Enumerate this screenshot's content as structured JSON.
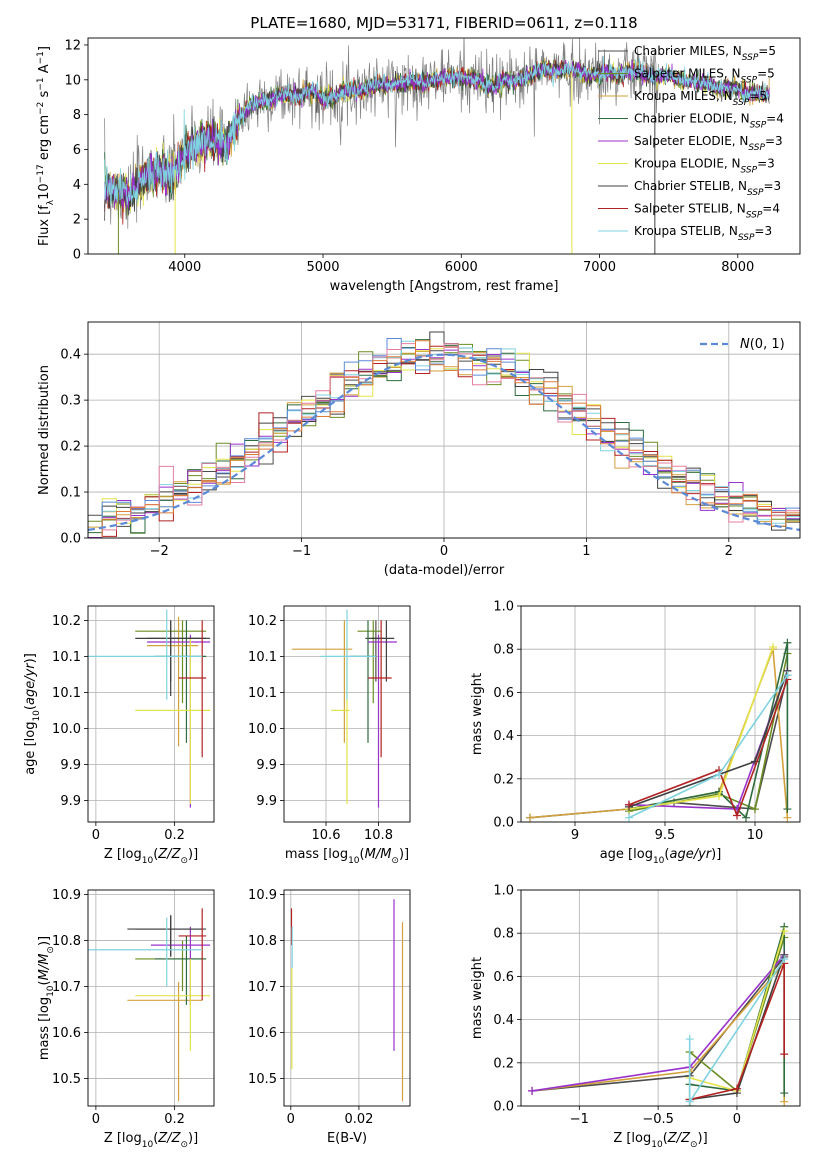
{
  "figure_title": "PLATE=1680, MJD=53171, FIBERID=0611, z=0.118",
  "colors": {
    "Chabrier MILES": "#4d4d4d",
    "Salpeter MILES": "#6b8e23",
    "Kroupa MILES": "#d2a13c",
    "Chabrier ELODIE": "#2e6b3f",
    "Salpeter ELODIE": "#9932cc",
    "Kroupa ELODIE": "#e3e34a",
    "Chabrier STELIB": "#404040",
    "Salpeter STELIB": "#b22222",
    "Kroupa STELIB": "#7fd3e0",
    "hist_extra_blue": "#5b8ad8",
    "hist_extra_pink": "#e57fa0",
    "hist_extra_orange": "#e07b39",
    "normal_curve": "#5b8ad8",
    "data_gray": "#808080",
    "grid": "#b0b0b0"
  },
  "chart_data": [
    {
      "id": "spectrum",
      "type": "line",
      "xlabel": "wavelength [Angstrom, rest frame]",
      "ylabel": "Flux [f_λ 10^-17 erg cm^-2 s^-1 A^-1]",
      "xlim": [
        3300,
        8450
      ],
      "ylim": [
        0,
        12.4
      ],
      "xticks": [
        4000,
        5000,
        6000,
        7000,
        8000
      ],
      "yticks": [
        0,
        2,
        4,
        6,
        8,
        10,
        12
      ],
      "grid": false,
      "legend_position": "top-right",
      "legend": [
        {
          "label": "Chabrier MILES, N",
          "sub": "SSP",
          "suffix": "=5",
          "key": "Chabrier MILES"
        },
        {
          "label": "Salpeter MILES, N",
          "sub": "SSP",
          "suffix": "=5",
          "key": "Salpeter MILES"
        },
        {
          "label": "Kroupa MILES, N",
          "sub": "SSP",
          "suffix": "=5",
          "key": "Kroupa MILES"
        },
        {
          "label": "Chabrier ELODIE, N",
          "sub": "SSP",
          "suffix": "=4",
          "key": "Chabrier ELODIE"
        },
        {
          "label": "Salpeter ELODIE, N",
          "sub": "SSP",
          "suffix": "=3",
          "key": "Salpeter ELODIE"
        },
        {
          "label": "Kroupa ELODIE, N",
          "sub": "SSP",
          "suffix": "=3",
          "key": "Kroupa ELODIE"
        },
        {
          "label": "Chabrier STELIB, N",
          "sub": "SSP",
          "suffix": "=3",
          "key": "Chabrier STELIB"
        },
        {
          "label": "Salpeter STELIB, N",
          "sub": "SSP",
          "suffix": "=4",
          "key": "Salpeter STELIB"
        },
        {
          "label": "Kroupa STELIB, N",
          "sub": "SSP",
          "suffix": "=3",
          "key": "Kroupa STELIB"
        }
      ],
      "continuum": {
        "x": [
          3420,
          3500,
          3600,
          3700,
          3800,
          3900,
          4000,
          4100,
          4200,
          4300,
          4400,
          4500,
          4600,
          4700,
          4800,
          4900,
          5000,
          5200,
          5400,
          5600,
          5800,
          6000,
          6200,
          6400,
          6600,
          6800,
          7000,
          7200,
          7400,
          7600,
          7800,
          8000,
          8200
        ],
        "y": [
          3.9,
          3.6,
          3.3,
          4.4,
          4.7,
          4.5,
          5.6,
          6.5,
          6.6,
          6.3,
          7.9,
          8.6,
          8.9,
          9.1,
          9.1,
          9.4,
          8.9,
          9.4,
          9.7,
          9.8,
          10.0,
          10.2,
          9.7,
          10.0,
          10.6,
          10.5,
          10.3,
          10.5,
          10.3,
          10.0,
          9.7,
          9.4,
          9.1
        ]
      },
      "model_dropouts": [
        {
          "key": "Salpeter MILES",
          "x": 3520
        },
        {
          "key": "Kroupa ELODIE",
          "x": 3930
        },
        {
          "key": "Kroupa ELODIE",
          "x": 6800
        },
        {
          "key": "Chabrier STELIB",
          "x": 7400
        }
      ]
    },
    {
      "id": "residual_histogram",
      "type": "histogram",
      "xlabel": "(data-model)/error",
      "ylabel": "Normed distribution",
      "xlim": [
        -2.5,
        2.5
      ],
      "ylim": [
        0,
        0.47
      ],
      "xticks": [
        -2,
        -1,
        0,
        1,
        2
      ],
      "yticks": [
        0.0,
        0.1,
        0.2,
        0.3,
        0.4
      ],
      "grid": true,
      "legend_position": "top-right",
      "legend": [
        {
          "label": "N(0,1)",
          "style": "dashed"
        }
      ],
      "bin_edges": [
        -2.5,
        -2.4,
        -2.3,
        -2.2,
        -2.1,
        -2.0,
        -1.9,
        -1.8,
        -1.7,
        -1.6,
        -1.5,
        -1.4,
        -1.3,
        -1.2,
        -1.1,
        -1.0,
        -0.9,
        -0.8,
        -0.7,
        -0.6,
        -0.5,
        -0.4,
        -0.3,
        -0.2,
        -0.1,
        0.0,
        0.1,
        0.2,
        0.3,
        0.4,
        0.5,
        0.6,
        0.7,
        0.8,
        0.9,
        1.0,
        1.1,
        1.2,
        1.3,
        1.4,
        1.5,
        1.6,
        1.7,
        1.8,
        1.9,
        2.0,
        2.1,
        2.2,
        2.3,
        2.4,
        2.5
      ]
    },
    {
      "id": "age_vs_Z",
      "type": "errorbar",
      "xlabel": "Z [log10(Z/Z_sun)]",
      "ylabel": "age [log10(age/yr)]",
      "xlim": [
        -0.02,
        0.3
      ],
      "ylim": [
        9.87,
        10.17
      ],
      "xticks": [
        0.0,
        0.2
      ],
      "yticks": [
        9.9,
        9.95,
        10.0,
        10.05,
        10.1,
        10.15
      ],
      "grid": true,
      "points": [
        {
          "key": "Chabrier MILES",
          "x": 0.19,
          "xerr": [
            0.06,
            0.1
          ],
          "y": 10.125,
          "yerr": [
            0.06,
            0.025
          ]
        },
        {
          "key": "Salpeter MILES",
          "x": 0.22,
          "xerr": [
            0.12,
            0.06
          ],
          "y": 10.135,
          "yerr": [
            0.1,
            0.015
          ]
        },
        {
          "key": "Kroupa MILES",
          "x": 0.21,
          "xerr": [
            0.08,
            0.05
          ],
          "y": 10.115,
          "yerr": [
            0.14,
            0.04
          ]
        },
        {
          "key": "Chabrier ELODIE",
          "x": 0.23,
          "xerr": [
            0.08,
            0.05
          ],
          "y": 10.1,
          "yerr": [
            0.12,
            0.05
          ]
        },
        {
          "key": "Salpeter ELODIE",
          "x": 0.24,
          "xerr": [
            0.11,
            0.05
          ],
          "y": 10.12,
          "yerr": [
            0.23,
            0.01
          ]
        },
        {
          "key": "Kroupa ELODIE",
          "x": 0.24,
          "xerr": [
            0.14,
            0.05
          ],
          "y": 10.025,
          "yerr": [
            0.13,
            0.1
          ]
        },
        {
          "key": "Chabrier STELIB",
          "x": 0.19,
          "xerr": [
            0.09,
            0.09
          ],
          "y": 10.125,
          "yerr": [
            0.08,
            0.025
          ]
        },
        {
          "key": "Salpeter STELIB",
          "x": 0.27,
          "xerr": [
            0.06,
            0.01
          ],
          "y": 10.07,
          "yerr": [
            0.11,
            0.08
          ]
        },
        {
          "key": "Kroupa STELIB",
          "x": 0.18,
          "xerr": [
            0.2,
            0.09
          ],
          "y": 10.1,
          "yerr": [
            0.06,
            0.065
          ]
        }
      ]
    },
    {
      "id": "age_vs_mass",
      "type": "errorbar",
      "xlabel": "mass [log10(M/M_sun)]",
      "ylabel": "",
      "xlim": [
        10.44,
        10.92
      ],
      "ylim": [
        9.87,
        10.17
      ],
      "xticks": [
        10.6,
        10.8
      ],
      "yticks": [
        9.9,
        9.95,
        10.0,
        10.05,
        10.1,
        10.15
      ],
      "grid": true,
      "points": [
        {
          "key": "Chabrier MILES",
          "x": 10.79,
          "xerr": [
            0.04,
            0.03
          ],
          "y": 10.125,
          "yerr": [
            0.06,
            0.025
          ]
        },
        {
          "key": "Salpeter MILES",
          "x": 10.78,
          "xerr": [
            0.06,
            0.03
          ],
          "y": 10.135,
          "yerr": [
            0.1,
            0.015
          ]
        },
        {
          "key": "Kroupa MILES",
          "x": 10.67,
          "xerr": [
            0.2,
            0.03
          ],
          "y": 10.11,
          "yerr": [
            0.13,
            0.04
          ]
        },
        {
          "key": "Chabrier ELODIE",
          "x": 10.76,
          "xerr": [
            0.07,
            0.03
          ],
          "y": 10.1,
          "yerr": [
            0.12,
            0.05
          ]
        },
        {
          "key": "Salpeter ELODIE",
          "x": 10.8,
          "xerr": [
            0.04,
            0.07
          ],
          "y": 10.12,
          "yerr": [
            0.23,
            0.01
          ]
        },
        {
          "key": "Kroupa ELODIE",
          "x": 10.68,
          "xerr": [
            0.06,
            0.01
          ],
          "y": 10.025,
          "yerr": [
            0.13,
            0.1
          ]
        },
        {
          "key": "Chabrier STELIB",
          "x": 10.83,
          "xerr": [
            0.06,
            0.03
          ],
          "y": 10.125,
          "yerr": [
            0.06,
            0.025
          ]
        },
        {
          "key": "Salpeter STELIB",
          "x": 10.81,
          "xerr": [
            0.05,
            0.04
          ],
          "y": 10.07,
          "yerr": [
            0.11,
            0.08
          ]
        },
        {
          "key": "Kroupa STELIB",
          "x": 10.68,
          "xerr": [
            0.1,
            0.11
          ],
          "y": 10.1,
          "yerr": [
            0.06,
            0.065
          ]
        }
      ]
    },
    {
      "id": "mass_weight_vs_age",
      "type": "line",
      "xlabel": "age [log10(age/yr)]",
      "ylabel": "mass weight",
      "xlim": [
        8.7,
        10.25
      ],
      "ylim": [
        0,
        1.0
      ],
      "xticks": [
        9.0,
        9.5,
        10.0
      ],
      "yticks": [
        0.0,
        0.2,
        0.4,
        0.6,
        0.8,
        1.0
      ],
      "grid": true,
      "series": [
        {
          "key": "Chabrier MILES",
          "x": [
            8.75,
            9.3,
            9.55,
            10.0,
            10.18
          ],
          "y": [
            0.02,
            0.06,
            0.09,
            0.06,
            0.68
          ]
        },
        {
          "key": "Salpeter MILES",
          "x": [
            9.3,
            9.8,
            10.0,
            10.18
          ],
          "y": [
            0.05,
            0.13,
            0.06,
            0.78
          ]
        },
        {
          "key": "Kroupa MILES",
          "x": [
            8.75,
            9.3,
            9.8,
            10.1,
            10.18
          ],
          "y": [
            0.02,
            0.06,
            0.14,
            0.8,
            0.02
          ]
        },
        {
          "key": "Chabrier ELODIE",
          "x": [
            9.3,
            9.8,
            9.95,
            10.18,
            10.18
          ],
          "y": [
            0.06,
            0.14,
            0.02,
            0.83,
            0.06
          ]
        },
        {
          "key": "Salpeter ELODIE",
          "x": [
            9.3,
            9.9,
            10.18
          ],
          "y": [
            0.08,
            0.06,
            0.7
          ]
        },
        {
          "key": "Kroupa ELODIE",
          "x": [
            9.3,
            9.8,
            10.1
          ],
          "y": [
            0.06,
            0.12,
            0.81
          ]
        },
        {
          "key": "Chabrier STELIB",
          "x": [
            9.3,
            10.0,
            10.18
          ],
          "y": [
            0.07,
            0.28,
            0.7
          ]
        },
        {
          "key": "Salpeter STELIB",
          "x": [
            9.3,
            9.8,
            9.9,
            10.18
          ],
          "y": [
            0.08,
            0.24,
            0.03,
            0.66
          ]
        },
        {
          "key": "Kroupa STELIB",
          "x": [
            9.3,
            9.8,
            10.18
          ],
          "y": [
            0.02,
            0.22,
            0.68
          ]
        }
      ]
    },
    {
      "id": "mass_vs_Z",
      "type": "errorbar",
      "xlabel": "Z [log10(Z/Z_sun)]",
      "ylabel": "mass [log10(M/M_sun)]",
      "xlim": [
        -0.02,
        0.3
      ],
      "ylim": [
        10.44,
        10.91
      ],
      "xticks": [
        0.0,
        0.2
      ],
      "yticks": [
        10.5,
        10.6,
        10.7,
        10.8,
        10.9
      ],
      "grid": true,
      "points": [
        {
          "key": "Chabrier MILES",
          "x": 0.19,
          "xerr": [
            0.09,
            0.08
          ],
          "y": 10.825,
          "yerr": [
            0.06,
            0.03
          ]
        },
        {
          "key": "Salpeter MILES",
          "x": 0.22,
          "xerr": [
            0.12,
            0.06
          ],
          "y": 10.76,
          "yerr": [
            0.07,
            0.04
          ]
        },
        {
          "key": "Kroupa MILES",
          "x": 0.21,
          "xerr": [
            0.13,
            0.06
          ],
          "y": 10.67,
          "yerr": [
            0.22,
            0.04
          ]
        },
        {
          "key": "Chabrier ELODIE",
          "x": 0.23,
          "xerr": [
            0.08,
            0.05
          ],
          "y": 10.76,
          "yerr": [
            0.1,
            0.05
          ]
        },
        {
          "key": "Salpeter ELODIE",
          "x": 0.24,
          "xerr": [
            0.1,
            0.05
          ],
          "y": 10.79,
          "yerr": [
            0.13,
            0.04
          ]
        },
        {
          "key": "Kroupa ELODIE",
          "x": 0.24,
          "xerr": [
            0.14,
            0.05
          ],
          "y": 10.68,
          "yerr": [
            0.12,
            0.08
          ]
        },
        {
          "key": "Chabrier STELIB",
          "x": 0.19,
          "xerr": [
            0.11,
            0.09
          ],
          "y": 10.825,
          "yerr": [
            0.06,
            0.03
          ]
        },
        {
          "key": "Salpeter STELIB",
          "x": 0.27,
          "xerr": [
            0.06,
            0.01
          ],
          "y": 10.81,
          "yerr": [
            0.14,
            0.06
          ]
        },
        {
          "key": "Kroupa STELIB",
          "x": 0.18,
          "xerr": [
            0.2,
            0.09
          ],
          "y": 10.78,
          "yerr": [
            0.08,
            0.07
          ]
        }
      ]
    },
    {
      "id": "mass_vs_ebv",
      "type": "errorbar",
      "xlabel": "E(B-V)",
      "ylabel": "",
      "xlim": [
        -0.002,
        0.035
      ],
      "ylim": [
        10.44,
        10.91
      ],
      "xticks": [
        0.0,
        0.02
      ],
      "yticks": [
        10.5,
        10.6,
        10.7,
        10.8,
        10.9
      ],
      "grid": true,
      "points": [
        {
          "key": "Salpeter STELIB",
          "x": 0.0002,
          "y": 10.83,
          "yerr": [
            0.04,
            0.04
          ]
        },
        {
          "key": "Kroupa STELIB",
          "x": 0.0004,
          "y": 10.79,
          "yerr": [
            0.05,
            0.04
          ]
        },
        {
          "key": "Kroupa ELODIE",
          "x": 0.0003,
          "y": 10.68,
          "yerr": [
            0.16,
            0.06
          ]
        },
        {
          "key": "Salpeter ELODIE",
          "x": 0.0303,
          "y": 10.79,
          "yerr": [
            0.23,
            0.1
          ]
        },
        {
          "key": "Kroupa MILES",
          "x": 0.0328,
          "y": 10.67,
          "yerr": [
            0.22,
            0.17
          ]
        }
      ]
    },
    {
      "id": "mass_weight_vs_Z",
      "type": "line",
      "xlabel": "Z [log10(Z/Z_sun)]",
      "ylabel": "mass weight",
      "xlim": [
        -1.37,
        0.4
      ],
      "ylim": [
        0,
        1.0
      ],
      "xticks": [
        -1.0,
        -0.5,
        0.0
      ],
      "yticks": [
        0.0,
        0.2,
        0.4,
        0.6,
        0.8,
        1.0
      ],
      "grid": true,
      "series": [
        {
          "key": "Chabrier MILES",
          "x": [
            -1.3,
            -0.3,
            0.3
          ],
          "y": [
            0.07,
            0.14,
            0.69
          ]
        },
        {
          "key": "Salpeter MILES",
          "x": [
            -0.3,
            -0.3,
            0.0,
            0.3
          ],
          "y": [
            0.0,
            0.25,
            0.07,
            0.78
          ]
        },
        {
          "key": "Kroupa MILES",
          "x": [
            -1.3,
            -0.3,
            0.3,
            0.3
          ],
          "y": [
            0.07,
            0.16,
            0.66,
            0.02
          ]
        },
        {
          "key": "Chabrier ELODIE",
          "x": [
            -0.3,
            0.0,
            0.3,
            0.3
          ],
          "y": [
            0.1,
            0.07,
            0.83,
            0.06
          ]
        },
        {
          "key": "Salpeter ELODIE",
          "x": [
            -1.3,
            -0.3,
            0.3
          ],
          "y": [
            0.07,
            0.18,
            0.7
          ]
        },
        {
          "key": "Kroupa ELODIE",
          "x": [
            -0.3,
            0.0,
            0.3
          ],
          "y": [
            0.13,
            0.07,
            0.81
          ]
        },
        {
          "key": "Chabrier STELIB",
          "x": [
            -0.3,
            0.0,
            0.3
          ],
          "y": [
            0.03,
            0.06,
            0.7
          ]
        },
        {
          "key": "Salpeter STELIB",
          "x": [
            -0.3,
            0.0,
            0.3,
            0.3
          ],
          "y": [
            0.03,
            0.08,
            0.66,
            0.24
          ]
        },
        {
          "key": "Kroupa STELIB",
          "x": [
            -0.3,
            -0.3,
            0.3
          ],
          "y": [
            0.31,
            0.02,
            0.68
          ]
        }
      ]
    }
  ]
}
